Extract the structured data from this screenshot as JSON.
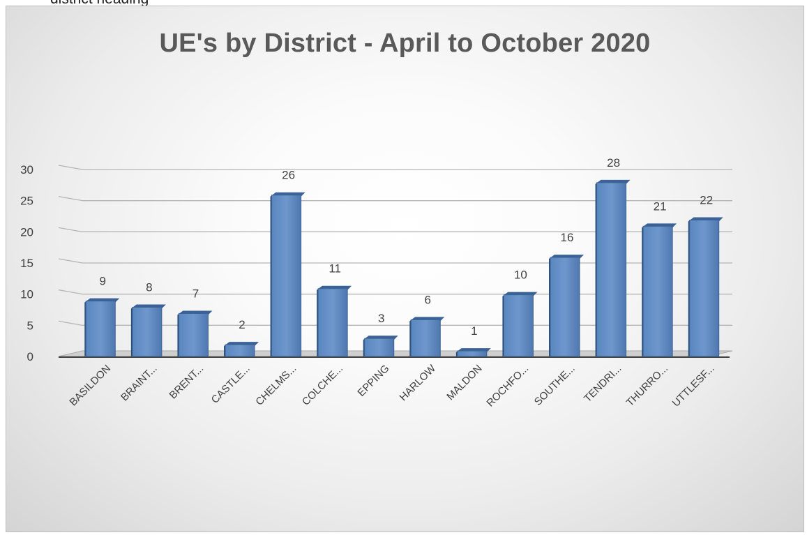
{
  "caption": "district heading",
  "chart_data": {
    "type": "bar",
    "title": "UE's by District - April to October 2020",
    "categories": [
      "BASILDON",
      "BRAINT...",
      "BRENT...",
      "CASTLE...",
      "CHELMS...",
      "COLCHE...",
      "EPPING",
      "HARLOW",
      "MALDON",
      "ROCHFO...",
      "SOUTHE...",
      "TENDRI...",
      "THURRO...",
      "UTTLESF..."
    ],
    "values": [
      9,
      8,
      7,
      2,
      26,
      11,
      3,
      6,
      1,
      10,
      16,
      28,
      21,
      22
    ],
    "yticks": [
      "0",
      "5",
      "10",
      "15",
      "20",
      "25",
      "30"
    ],
    "ylim": [
      0,
      30
    ],
    "grid": true,
    "style": "3d-column",
    "bar_color": "#4f81bd",
    "xlabel": "",
    "ylabel": ""
  }
}
